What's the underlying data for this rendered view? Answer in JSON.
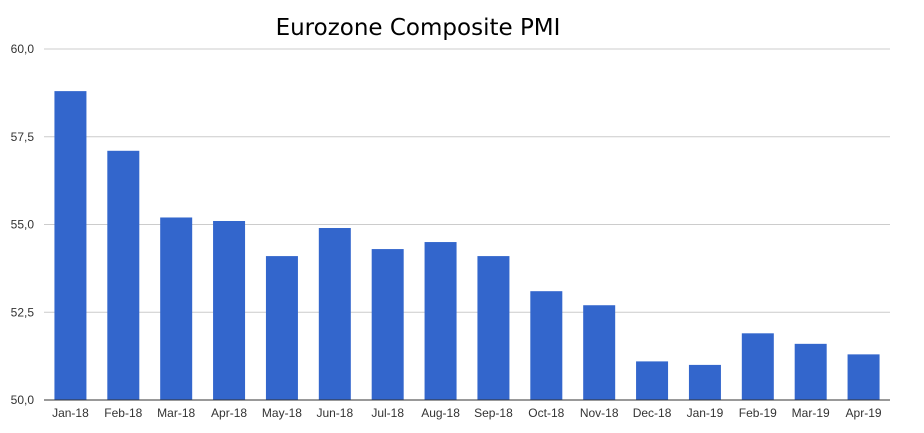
{
  "chart_data": {
    "type": "bar",
    "title": "Eurozone Composite PMI",
    "xlabel": "",
    "ylabel": "",
    "categories": [
      "Jan-18",
      "Feb-18",
      "Mar-18",
      "Apr-18",
      "May-18",
      "Jun-18",
      "Jul-18",
      "Aug-18",
      "Sep-18",
      "Oct-18",
      "Nov-18",
      "Dec-18",
      "Jan-19",
      "Feb-19",
      "Mar-19",
      "Apr-19"
    ],
    "values": [
      58.8,
      57.1,
      55.2,
      55.1,
      54.1,
      54.9,
      54.3,
      54.5,
      54.1,
      53.1,
      52.7,
      51.1,
      51.0,
      51.9,
      51.6,
      51.3
    ],
    "ylim": [
      50.0,
      60.0
    ],
    "yticks": [
      50.0,
      52.5,
      55.0,
      57.5,
      60.0
    ],
    "ytick_labels": [
      "50,0",
      "52,5",
      "55,0",
      "57,5",
      "60,0"
    ],
    "grid": true,
    "legend": "none",
    "bar_color": "#3366cc"
  }
}
